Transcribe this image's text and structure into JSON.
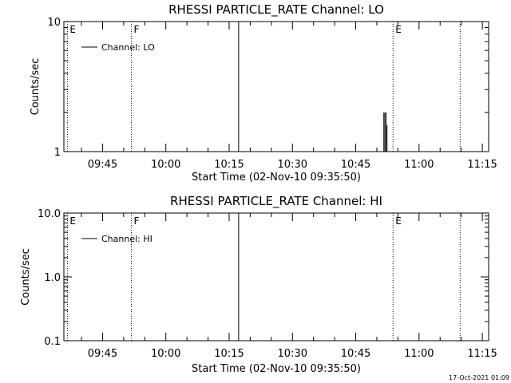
{
  "footer": {
    "timestamp": "17-Oct-2021 01:09"
  },
  "chart_data": [
    {
      "type": "line",
      "title": "RHESSI PARTICLE_RATE Channel: LO",
      "xlabel": "Start Time (02-Nov-10 09:35:50)",
      "ylabel": "Counts/sec",
      "y_scale": "log",
      "ylim": [
        1,
        10
      ],
      "y_ticks": [
        {
          "value": 1,
          "label": "1"
        },
        {
          "value": 10,
          "label": "10"
        }
      ],
      "xlim": [
        "09:35:50",
        "11:16:30"
      ],
      "x_ticks": [
        "09:45",
        "10:00",
        "10:15",
        "10:30",
        "10:45",
        "11:00",
        "11:15"
      ],
      "legend": {
        "position": "top-left",
        "entries": [
          "Channel: LO"
        ]
      },
      "series": [
        {
          "name": "Channel: LO",
          "x": [
            "10:51:40",
            "10:51:55",
            "10:52:10",
            "10:52:25"
          ],
          "y": [
            2.0,
            2.0,
            2.0,
            1.6
          ]
        }
      ],
      "markers": [
        {
          "time": "09:36:40",
          "style": "dotted",
          "label": "E"
        },
        {
          "time": "09:51:50",
          "style": "dotted",
          "label": "F"
        },
        {
          "time": "10:17:15",
          "style": "solid",
          "label": ""
        },
        {
          "time": "10:53:50",
          "style": "dotted",
          "label": "E"
        },
        {
          "time": "11:09:45",
          "style": "dotted",
          "label": ""
        }
      ]
    },
    {
      "type": "line",
      "title": "RHESSI PARTICLE_RATE Channel: HI",
      "xlabel": "Start Time (02-Nov-10 09:35:50)",
      "ylabel": "Counts/sec",
      "y_scale": "log",
      "ylim": [
        0.1,
        10
      ],
      "y_ticks": [
        {
          "value": 0.1,
          "label": "0.1"
        },
        {
          "value": 1,
          "label": "1.0"
        },
        {
          "value": 10,
          "label": "10.0"
        }
      ],
      "xlim": [
        "09:35:50",
        "11:16:30"
      ],
      "x_ticks": [
        "09:45",
        "10:00",
        "10:15",
        "10:30",
        "10:45",
        "11:00",
        "11:15"
      ],
      "legend": {
        "position": "top-left",
        "entries": [
          "Channel: HI"
        ]
      },
      "series": [
        {
          "name": "Channel: HI",
          "x": [],
          "y": []
        }
      ],
      "markers": [
        {
          "time": "09:36:40",
          "style": "dotted",
          "label": "E"
        },
        {
          "time": "09:51:50",
          "style": "dotted",
          "label": "F"
        },
        {
          "time": "10:17:15",
          "style": "solid",
          "label": ""
        },
        {
          "time": "10:53:50",
          "style": "dotted",
          "label": "E"
        },
        {
          "time": "11:09:45",
          "style": "dotted",
          "label": ""
        }
      ]
    }
  ]
}
